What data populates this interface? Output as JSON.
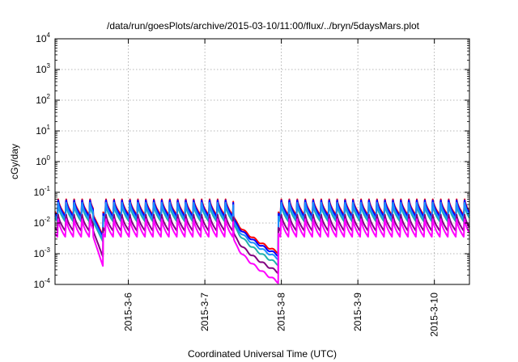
{
  "chart_data": {
    "type": "line",
    "title": "/data/run/goesPlots/archive/2015-03-10/11:00/flux/../bryn/5daysMars.plot",
    "xlabel": "Coordinated Universal Time (UTC)",
    "ylabel": "cGy/day",
    "yscale": "log",
    "ylim": [
      0.0001,
      10000
    ],
    "xlim": [
      "2015-03-05 01:00",
      "2015-03-10 11:00"
    ],
    "grid": true,
    "x_ticks": [
      {
        "x": "2015-03-06 00:00",
        "label": "2015-3-6"
      },
      {
        "x": "2015-03-07 00:00",
        "label": "2015-3-7"
      },
      {
        "x": "2015-03-08 00:00",
        "label": "2015-3-8"
      },
      {
        "x": "2015-03-09 00:00",
        "label": "2015-3-9"
      },
      {
        "x": "2015-03-10 00:00",
        "label": "2015-3-10"
      }
    ],
    "y_ticks": [
      {
        "base": "10",
        "exp": "-4"
      },
      {
        "base": "10",
        "exp": "-3"
      },
      {
        "base": "10",
        "exp": "-2"
      },
      {
        "base": "10",
        "exp": "-1"
      },
      {
        "base": "10",
        "exp": "0"
      },
      {
        "base": "10",
        "exp": "1"
      },
      {
        "base": "10",
        "exp": "2"
      },
      {
        "base": "10",
        "exp": "3"
      },
      {
        "base": "10",
        "exp": "4"
      }
    ],
    "pattern": {
      "cycle_hours": 2.5,
      "peak_hour_in_cycle": 0.2,
      "dip_start": "2015-03-05 13:00",
      "dip_end": "2015-03-05 16:00",
      "drop_start": "2015-03-07 09:00",
      "drop_end": "2015-03-07 23:00"
    },
    "series": [
      {
        "color": "#ff0000",
        "peak": 0.07,
        "trough": 0.018,
        "dip_low": 0.004,
        "drop_low": 0.0011
      },
      {
        "color": "#0000ff",
        "peak": 0.065,
        "trough": 0.016,
        "dip_low": 0.0035,
        "drop_low": 0.0009
      },
      {
        "color": "#20b2aa",
        "peak": 0.045,
        "trough": 0.011,
        "dip_low": 0.0025,
        "drop_low": 0.00045
      },
      {
        "color": "#1e90ff",
        "peak": 0.055,
        "trough": 0.013,
        "dip_low": 0.003,
        "drop_low": 0.0007
      },
      {
        "color": "#800080",
        "peak": 0.022,
        "trough": 0.0055,
        "dip_low": 0.0008,
        "drop_low": 0.00025
      },
      {
        "color": "#ff00ff",
        "peak": 0.016,
        "trough": 0.0035,
        "dip_low": 0.0004,
        "drop_low": 0.00012
      }
    ]
  }
}
